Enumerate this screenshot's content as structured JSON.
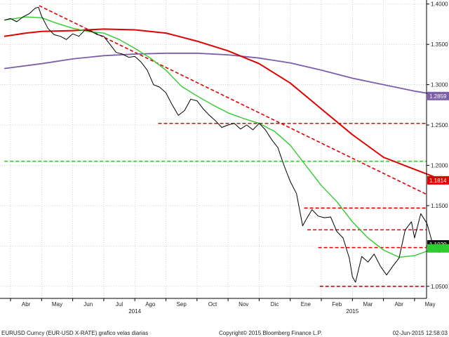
{
  "chart_data": {
    "type": "line",
    "grid": true,
    "y_axis_side": "right",
    "ylim": [
      1.035,
      1.405
    ],
    "y_ticks": [
      {
        "v": 1.4,
        "t": "1.4000"
      },
      {
        "v": 1.35,
        "t": "1.3500"
      },
      {
        "v": 1.3,
        "t": "1.3000"
      },
      {
        "v": 1.25,
        "t": "1.2500"
      },
      {
        "v": 1.2,
        "t": "1.2000"
      },
      {
        "v": 1.15,
        "t": "1.1500"
      },
      {
        "v": 1.1,
        "t": "1.1000"
      },
      {
        "v": 1.05,
        "t": "1.0500"
      }
    ],
    "months": [
      "Abr",
      "May",
      "Jun",
      "Jul",
      "Ago",
      "Sep",
      "Oct",
      "Nov",
      "Dic",
      "Ene",
      "Feb",
      "Mar",
      "Abr",
      "May"
    ],
    "years": [
      {
        "at": 4,
        "label": "2014"
      },
      {
        "at": 11,
        "label": "2015"
      }
    ],
    "price": [
      [
        -0.2,
        1.38
      ],
      [
        0.0,
        1.382
      ],
      [
        0.2,
        1.378
      ],
      [
        0.4,
        1.384
      ],
      [
        0.6,
        1.388
      ],
      [
        0.8,
        1.395
      ],
      [
        0.9,
        1.396
      ],
      [
        1.0,
        1.385
      ],
      [
        1.2,
        1.37
      ],
      [
        1.4,
        1.362
      ],
      [
        1.6,
        1.36
      ],
      [
        1.8,
        1.356
      ],
      [
        2.0,
        1.363
      ],
      [
        2.2,
        1.36
      ],
      [
        2.4,
        1.368
      ],
      [
        2.6,
        1.366
      ],
      [
        2.8,
        1.362
      ],
      [
        3.0,
        1.36
      ],
      [
        3.2,
        1.35
      ],
      [
        3.4,
        1.34
      ],
      [
        3.6,
        1.338
      ],
      [
        3.8,
        1.334
      ],
      [
        4.0,
        1.335
      ],
      [
        4.2,
        1.328
      ],
      [
        4.4,
        1.318
      ],
      [
        4.6,
        1.3
      ],
      [
        4.8,
        1.297
      ],
      [
        5.0,
        1.29
      ],
      [
        5.2,
        1.275
      ],
      [
        5.4,
        1.262
      ],
      [
        5.6,
        1.268
      ],
      [
        5.8,
        1.282
      ],
      [
        6.0,
        1.28
      ],
      [
        6.2,
        1.27
      ],
      [
        6.4,
        1.262
      ],
      [
        6.6,
        1.255
      ],
      [
        6.8,
        1.247
      ],
      [
        7.0,
        1.25
      ],
      [
        7.2,
        1.252
      ],
      [
        7.4,
        1.245
      ],
      [
        7.6,
        1.25
      ],
      [
        7.8,
        1.244
      ],
      [
        8.0,
        1.252
      ],
      [
        8.2,
        1.244
      ],
      [
        8.4,
        1.232
      ],
      [
        8.6,
        1.222
      ],
      [
        8.8,
        1.2
      ],
      [
        9.0,
        1.18
      ],
      [
        9.2,
        1.165
      ],
      [
        9.4,
        1.125
      ],
      [
        9.5,
        1.132
      ],
      [
        9.7,
        1.145
      ],
      [
        9.9,
        1.137
      ],
      [
        10.1,
        1.135
      ],
      [
        10.3,
        1.136
      ],
      [
        10.5,
        1.118
      ],
      [
        10.7,
        1.11
      ],
      [
        10.9,
        1.085
      ],
      [
        11.0,
        1.062
      ],
      [
        11.1,
        1.055
      ],
      [
        11.3,
        1.087
      ],
      [
        11.5,
        1.08
      ],
      [
        11.7,
        1.09
      ],
      [
        11.9,
        1.075
      ],
      [
        12.1,
        1.064
      ],
      [
        12.3,
        1.075
      ],
      [
        12.5,
        1.085
      ],
      [
        12.7,
        1.12
      ],
      [
        12.9,
        1.13
      ],
      [
        13.0,
        1.11
      ],
      [
        13.2,
        1.14
      ],
      [
        13.4,
        1.128
      ],
      [
        13.6,
        1.1
      ],
      [
        13.8,
        1.092
      ],
      [
        13.95,
        1.102
      ]
    ],
    "ma_green": [
      [
        -0.2,
        1.38
      ],
      [
        0.5,
        1.384
      ],
      [
        1.0,
        1.383
      ],
      [
        1.5,
        1.376
      ],
      [
        2.0,
        1.37
      ],
      [
        2.5,
        1.366
      ],
      [
        3.0,
        1.364
      ],
      [
        3.5,
        1.356
      ],
      [
        4.0,
        1.345
      ],
      [
        4.5,
        1.333
      ],
      [
        5.0,
        1.318
      ],
      [
        5.5,
        1.298
      ],
      [
        6.0,
        1.286
      ],
      [
        6.5,
        1.275
      ],
      [
        7.0,
        1.265
      ],
      [
        7.5,
        1.258
      ],
      [
        8.0,
        1.252
      ],
      [
        8.5,
        1.242
      ],
      [
        9.0,
        1.225
      ],
      [
        9.5,
        1.2
      ],
      [
        10.0,
        1.175
      ],
      [
        10.5,
        1.155
      ],
      [
        11.0,
        1.13
      ],
      [
        11.5,
        1.11
      ],
      [
        12.0,
        1.095
      ],
      [
        12.5,
        1.086
      ],
      [
        13.0,
        1.088
      ],
      [
        13.5,
        1.095
      ],
      [
        13.95,
        1.1
      ]
    ],
    "ma_red": [
      [
        -0.2,
        1.36
      ],
      [
        0.5,
        1.364
      ],
      [
        1.0,
        1.366
      ],
      [
        2.0,
        1.367
      ],
      [
        3.0,
        1.369
      ],
      [
        4.0,
        1.368
      ],
      [
        5.0,
        1.364
      ],
      [
        6.0,
        1.354
      ],
      [
        7.0,
        1.342
      ],
      [
        8.0,
        1.326
      ],
      [
        9.0,
        1.302
      ],
      [
        10.0,
        1.27
      ],
      [
        11.0,
        1.238
      ],
      [
        12.0,
        1.21
      ],
      [
        13.0,
        1.195
      ],
      [
        13.95,
        1.181
      ]
    ],
    "ma_purple": [
      [
        -0.2,
        1.32
      ],
      [
        1.0,
        1.326
      ],
      [
        2.0,
        1.332
      ],
      [
        3.0,
        1.336
      ],
      [
        4.0,
        1.338
      ],
      [
        5.0,
        1.339
      ],
      [
        6.0,
        1.339
      ],
      [
        7.0,
        1.337
      ],
      [
        8.0,
        1.333
      ],
      [
        9.0,
        1.327
      ],
      [
        10.0,
        1.318
      ],
      [
        11.0,
        1.308
      ],
      [
        12.0,
        1.3
      ],
      [
        13.0,
        1.292
      ],
      [
        13.95,
        1.286
      ]
    ],
    "trendlines": [
      {
        "kind": "diagonal",
        "color": "#e00000",
        "from": [
          0.92,
          1.398
        ],
        "to": [
          14.8,
          1.164
        ]
      },
      {
        "kind": "horizontal",
        "color": "#e00000",
        "y": 1.252,
        "from": 4.75,
        "to": 14.2
      },
      {
        "kind": "horizontal",
        "color": "#2ecc2e",
        "y": 1.205,
        "from": -0.2,
        "to": 14.2
      },
      {
        "kind": "horizontal",
        "color": "#e00000",
        "y": 1.147,
        "from": 9.45,
        "to": 14.2
      },
      {
        "kind": "horizontal",
        "color": "#e00000",
        "y": 1.12,
        "from": 9.55,
        "to": 14.2
      },
      {
        "kind": "horizontal",
        "color": "#e00000",
        "y": 1.098,
        "from": 9.9,
        "to": 14.2
      },
      {
        "kind": "horizontal",
        "color": "#e00000",
        "y": 1.05,
        "from": 9.95,
        "to": 14.2
      }
    ],
    "value_labels": [
      {
        "value": 1.2859,
        "text": "1.2859",
        "color": "#7b5ea7"
      },
      {
        "value": 1.1814,
        "text": "1.1814",
        "color": "#e00000"
      },
      {
        "value": 1.102,
        "text": "1.1020",
        "color": "#111111"
      },
      {
        "value": 1.097,
        "text": "",
        "color": "#2ecc2e"
      }
    ]
  },
  "footer": {
    "source": "EURUSD Curncy  (EUR-USD X-RATE)  grafico velas diarias",
    "copyright": "Copyright© 2015 Bloomberg Finance L.P.",
    "timestamp": "02-Jun-2015  12:58:03"
  },
  "colors": {
    "price": "#000000",
    "ma_green": "#2ecc2e",
    "ma_red": "#e00000",
    "ma_purple": "#7b5ea7",
    "grid": "#b8b8b8"
  }
}
